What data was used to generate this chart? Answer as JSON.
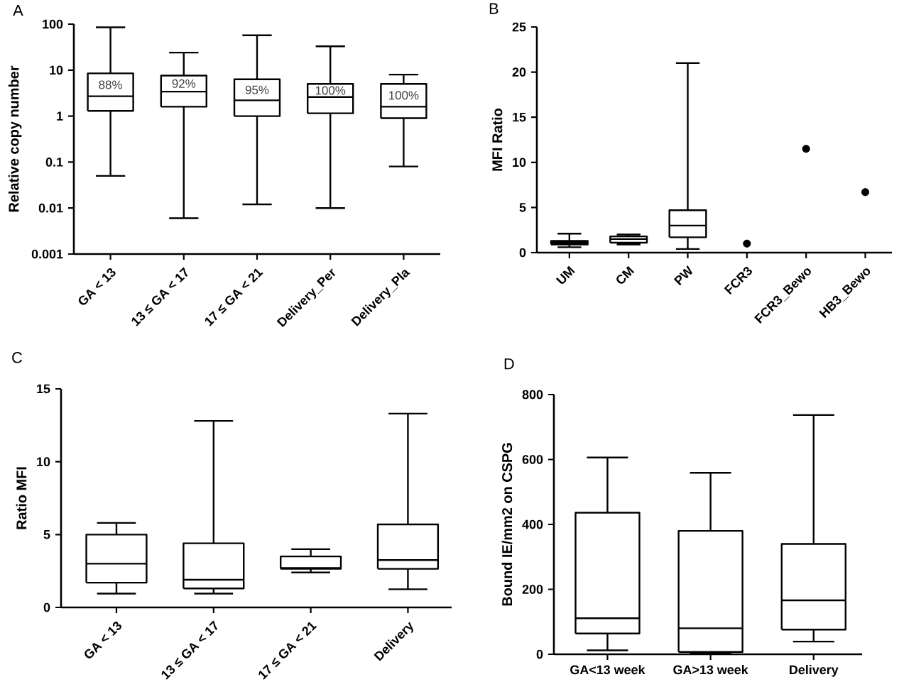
{
  "chart_data": [
    {
      "type": "box",
      "title": "A",
      "ylabel": "Relative copy number",
      "color": "#000000",
      "log": "y",
      "categories": [
        "GA < 13",
        "13 ≤ GA < 17",
        "17 ≤ GA < 21",
        "Delivery_Per",
        "Delivery_Pla"
      ],
      "boxes": [
        {
          "low": 0.05,
          "q1": 1.3,
          "median": 2.7,
          "q3": 8.5,
          "high": 85
        },
        {
          "low": 0.006,
          "q1": 1.6,
          "median": 3.4,
          "q3": 7.6,
          "high": 24
        },
        {
          "low": 0.012,
          "q1": 1.0,
          "median": 2.2,
          "q3": 6.3,
          "high": 57
        },
        {
          "low": 0.01,
          "q1": 1.15,
          "median": 2.6,
          "q3": 5.0,
          "high": 33
        },
        {
          "low": 0.08,
          "q1": 0.9,
          "median": 1.6,
          "q3": 5.0,
          "high": 8
        }
      ],
      "ylim": [
        0.001,
        100
      ],
      "yticks": [
        0.001,
        0.01,
        0.1,
        1,
        10,
        100
      ],
      "annotations": [
        "88%",
        "92%",
        "95%",
        "100%",
        "100%"
      ]
    },
    {
      "type": "box",
      "title": "B",
      "ylabel": "MFI Ratio",
      "color": "#000000",
      "marker": "circle",
      "categories": [
        "UM",
        "CM",
        "PW",
        "FCR3",
        "FCR3_Bewo",
        "HB3_Bewo"
      ],
      "boxes": [
        {
          "low": 0.6,
          "q1": 0.9,
          "median": 1.1,
          "q3": 1.3,
          "high": 2.1
        },
        {
          "low": 0.9,
          "q1": 1.1,
          "median": 1.5,
          "q3": 1.8,
          "high": 2.0
        },
        {
          "low": 0.4,
          "q1": 1.7,
          "median": 3.0,
          "q3": 4.7,
          "high": 21
        },
        null,
        null,
        null
      ],
      "series": [
        {
          "type": "scatter",
          "color": "#000000",
          "x": [
            "FCR3",
            "FCR3_Bewo",
            "HB3_Bewo"
          ],
          "values": [
            1.0,
            11.5,
            6.7
          ]
        }
      ],
      "ylim": [
        0,
        25
      ],
      "yticks": [
        0,
        5,
        10,
        15,
        20,
        25
      ]
    },
    {
      "type": "box",
      "title": "C",
      "ylabel": "Ratio MFI",
      "color": "#000000",
      "categories": [
        "GA < 13",
        "13 ≤ GA < 17",
        "17 ≤ GA < 21",
        "Delivery"
      ],
      "boxes": [
        {
          "low": 0.95,
          "q1": 1.7,
          "median": 3.0,
          "q3": 5.0,
          "high": 5.8
        },
        {
          "low": 0.95,
          "q1": 1.3,
          "median": 1.9,
          "q3": 4.4,
          "high": 12.8
        },
        {
          "low": 2.4,
          "q1": 2.65,
          "median": 2.7,
          "q3": 3.5,
          "high": 4.0
        },
        {
          "low": 1.25,
          "q1": 2.65,
          "median": 3.25,
          "q3": 5.7,
          "high": 13.3
        }
      ],
      "ylim": [
        0,
        15
      ],
      "yticks": [
        0,
        5,
        10,
        15
      ]
    },
    {
      "type": "box",
      "title": "D",
      "ylabel": "Bound IE/mm2 on CSPG",
      "color": "#000000",
      "categories": [
        "GA<13 week",
        "GA>13 week",
        "Delivery"
      ],
      "boxes": [
        {
          "low": 12,
          "q1": 64,
          "median": 111,
          "q3": 436,
          "high": 606
        },
        {
          "low": 3,
          "q1": 7,
          "median": 80,
          "q3": 380,
          "high": 559
        },
        {
          "low": 39,
          "q1": 76,
          "median": 166,
          "q3": 340,
          "high": 737
        }
      ],
      "ylim": [
        0,
        800
      ],
      "yticks": [
        0,
        200,
        400,
        600,
        800
      ]
    }
  ]
}
